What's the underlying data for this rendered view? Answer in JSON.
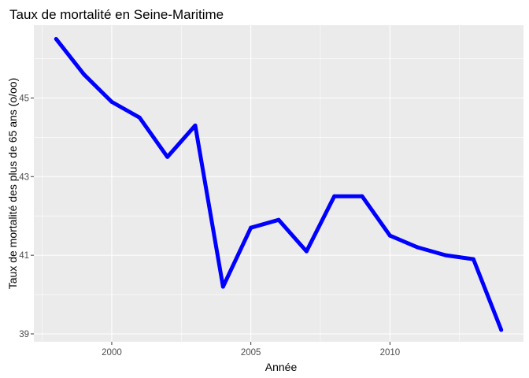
{
  "chart_data": {
    "type": "line",
    "title": "Taux de mortalité en Seine-Maritime",
    "xlabel": "Année",
    "ylabel": "Taux de mortalité des plus de 65 ans (o/oo)",
    "x": [
      1998,
      1999,
      2000,
      2001,
      2002,
      2003,
      2004,
      2005,
      2006,
      2007,
      2008,
      2009,
      2010,
      2011,
      2012,
      2013,
      2014
    ],
    "series": [
      {
        "values": [
          46.5,
          45.6,
          44.9,
          44.5,
          43.5,
          44.3,
          40.2,
          41.7,
          41.9,
          41.1,
          42.5,
          42.5,
          41.5,
          41.2,
          41.0,
          40.9,
          39.1
        ],
        "color": "#0000ff"
      }
    ],
    "xlim": [
      1997.2,
      2014.8
    ],
    "ylim": [
      38.8,
      46.85
    ],
    "x_ticks": [
      {
        "value": 2000,
        "label": "2000"
      },
      {
        "value": 2005,
        "label": "2005"
      },
      {
        "value": 2010,
        "label": "2010"
      }
    ],
    "y_ticks": [
      {
        "value": 39,
        "label": "39"
      },
      {
        "value": 41,
        "label": "41"
      },
      {
        "value": 43,
        "label": "43"
      },
      {
        "value": 45,
        "label": "45"
      }
    ],
    "x_minor": [
      1997.5,
      2002.5,
      2007.5,
      2012.5
    ],
    "y_minor": [
      40,
      42,
      44,
      46
    ],
    "grid": true,
    "panel_color": "#ebebeb",
    "grid_color": "#ffffff"
  }
}
